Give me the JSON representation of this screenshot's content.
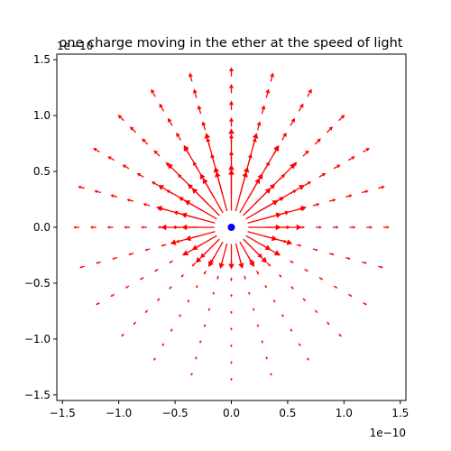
{
  "chart_data": {
    "type": "quiver",
    "title": "one charge moving in the ether at the speed of light",
    "xlabel": "",
    "ylabel": "",
    "xlim": [
      -1.55,
      1.55
    ],
    "ylim": [
      -1.55,
      1.55
    ],
    "x_ticks": [
      -1.5,
      -1.0,
      -0.5,
      0.0,
      0.5,
      1.0,
      1.5
    ],
    "x_tick_labels": [
      "−1.5",
      "−1.0",
      "−0.5",
      "0.0",
      "0.5",
      "1.0",
      "1.5"
    ],
    "y_ticks": [
      -1.5,
      -1.0,
      -0.5,
      0.0,
      0.5,
      1.0,
      1.5
    ],
    "y_tick_labels": [
      "−1.5",
      "−1.0",
      "−0.5",
      "0.0",
      "0.5",
      "1.0",
      "1.5"
    ],
    "x_offset_label": "1e−10",
    "y_offset_label": "1e−10",
    "grid": false,
    "charge": {
      "x": 0.0,
      "y": 0.0,
      "color": "#0000ff"
    },
    "arrow_color": "#ff0000",
    "field_rings": {
      "radii": [
        0.15,
        0.3,
        0.45,
        0.6,
        0.75,
        0.9,
        1.05,
        1.2,
        1.35
      ],
      "arrows_per_ring": [
        24,
        24,
        24,
        24,
        24,
        24,
        24,
        24,
        24
      ],
      "direction": "radial outward",
      "motion_axis": "positive y (arrows longer ahead of the charge, shorter behind)"
    }
  }
}
